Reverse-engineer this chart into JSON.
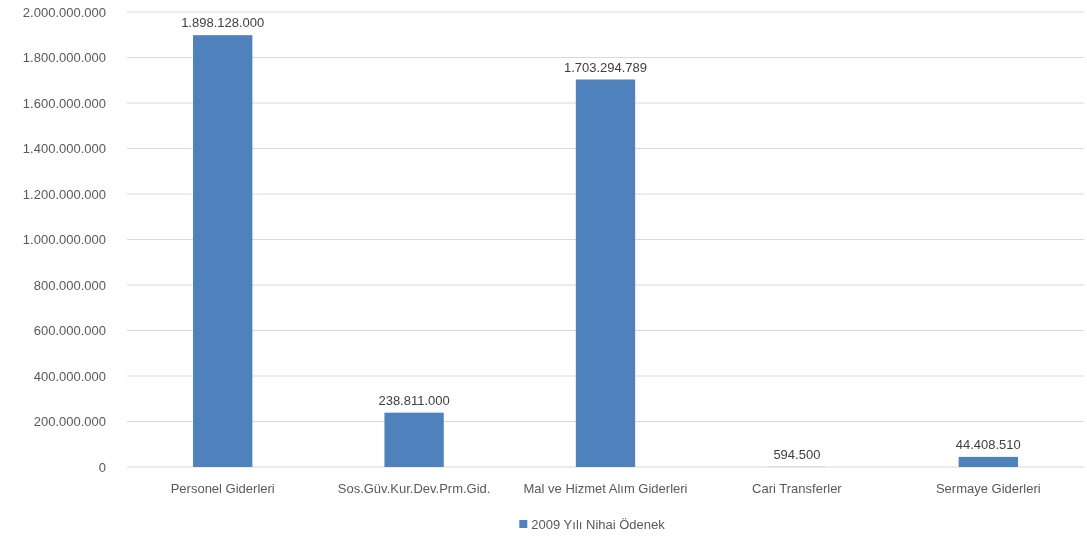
{
  "chart_data": {
    "type": "bar",
    "categories": [
      "Personel Giderleri",
      "Sos.Güv.Kur.Dev.Prm.Gid.",
      "Mal ve Hizmet Alım Giderleri",
      "Cari Transferler",
      "Sermaye Giderleri"
    ],
    "series": [
      {
        "name": "2009 Yılı Nihai Ödenek",
        "color": "#4f81bd",
        "values": [
          1898128000,
          238811000,
          1703294789,
          594500,
          44408510
        ],
        "value_labels": [
          "1.898.128.000",
          "238.811.000",
          "1.703.294.789",
          "594.500",
          "44.408.510"
        ]
      }
    ],
    "ylim": [
      0,
      2000000000
    ],
    "yticks": [
      {
        "value": 0,
        "label": "0"
      },
      {
        "value": 200000000,
        "label": "200.000.000"
      },
      {
        "value": 400000000,
        "label": "400.000.000"
      },
      {
        "value": 600000000,
        "label": "600.000.000"
      },
      {
        "value": 800000000,
        "label": "800.000.000"
      },
      {
        "value": 1000000000,
        "label": "1.000.000.000"
      },
      {
        "value": 1200000000,
        "label": "1.200.000.000"
      },
      {
        "value": 1400000000,
        "label": "1.400.000.000"
      },
      {
        "value": 1600000000,
        "label": "1.600.000.000"
      },
      {
        "value": 1800000000,
        "label": "1.800.000.000"
      },
      {
        "value": 2000000000,
        "label": "2.000.000.000"
      }
    ],
    "grid": "y",
    "legend": "bottom"
  }
}
